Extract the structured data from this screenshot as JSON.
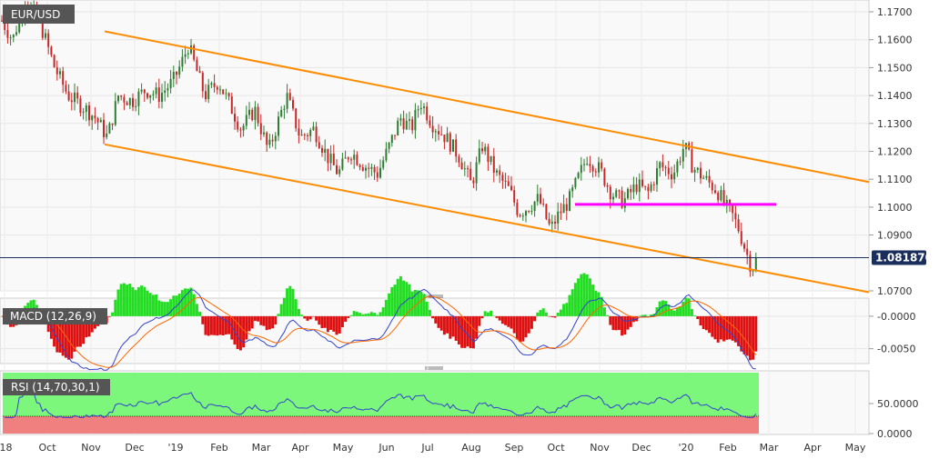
{
  "chart_data": {
    "type": "candlestick",
    "symbol": "EUR/USD",
    "last_price": "1.081870",
    "price_axis": {
      "ticks": [
        "1.1700",
        "1.1600",
        "1.1500",
        "1.1400",
        "1.1300",
        "1.1200",
        "1.1100",
        "1.1000",
        "1.0900",
        "1.0700"
      ],
      "range": [
        1.068,
        1.175
      ]
    },
    "x_axis": {
      "labels": [
        "'18",
        "Oct",
        "Nov",
        "Dec",
        "'19",
        "Feb",
        "Mar",
        "Apr",
        "May",
        "Jun",
        "Jul",
        "Aug",
        "Sep",
        "Oct",
        "Nov",
        "Dec",
        "'20",
        "Feb",
        "Mar",
        "Apr",
        "May"
      ]
    },
    "price_path": [
      [
        0,
        1.168
      ],
      [
        14,
        1.16
      ],
      [
        28,
        1.175
      ],
      [
        45,
        1.165
      ],
      [
        60,
        1.15
      ],
      [
        75,
        1.14
      ],
      [
        95,
        1.135
      ],
      [
        105,
        1.132
      ],
      [
        118,
        1.125
      ],
      [
        130,
        1.14
      ],
      [
        145,
        1.138
      ],
      [
        160,
        1.142
      ],
      [
        175,
        1.14
      ],
      [
        190,
        1.145
      ],
      [
        200,
        1.152
      ],
      [
        207,
        1.158
      ],
      [
        215,
        1.15
      ],
      [
        225,
        1.14
      ],
      [
        240,
        1.145
      ],
      [
        255,
        1.135
      ],
      [
        265,
        1.128
      ],
      [
        280,
        1.135
      ],
      [
        295,
        1.12
      ],
      [
        305,
        1.13
      ],
      [
        315,
        1.14
      ],
      [
        330,
        1.125
      ],
      [
        345,
        1.128
      ],
      [
        360,
        1.118
      ],
      [
        372,
        1.112
      ],
      [
        385,
        1.12
      ],
      [
        400,
        1.115
      ],
      [
        415,
        1.112
      ],
      [
        428,
        1.122
      ],
      [
        440,
        1.132
      ],
      [
        452,
        1.128
      ],
      [
        462,
        1.138
      ],
      [
        475,
        1.13
      ],
      [
        490,
        1.125
      ],
      [
        505,
        1.118
      ],
      [
        518,
        1.108
      ],
      [
        530,
        1.122
      ],
      [
        545,
        1.112
      ],
      [
        560,
        1.106
      ],
      [
        570,
        1.098
      ],
      [
        580,
        1.1
      ],
      [
        592,
        1.103
      ],
      [
        605,
        1.092
      ],
      [
        615,
        1.098
      ],
      [
        625,
        1.102
      ],
      [
        635,
        1.11
      ],
      [
        645,
        1.118
      ],
      [
        660,
        1.113
      ],
      [
        672,
        1.105
      ],
      [
        685,
        1.102
      ],
      [
        700,
        1.108
      ],
      [
        712,
        1.105
      ],
      [
        725,
        1.115
      ],
      [
        740,
        1.112
      ],
      [
        752,
        1.122
      ],
      [
        762,
        1.114
      ],
      [
        775,
        1.11
      ],
      [
        788,
        1.106
      ],
      [
        798,
        1.1
      ],
      [
        805,
        1.097
      ],
      [
        812,
        1.092
      ],
      [
        818,
        1.086
      ],
      [
        824,
        1.08
      ],
      [
        830,
        1.078
      ],
      [
        834,
        1.0819
      ]
    ],
    "channel_lines": {
      "upper": [
        [
          1.163,
          115
        ],
        [
          1.109,
          955
        ]
      ],
      "lower": [
        [
          1.1225,
          115
        ],
        [
          1.0695,
          955
        ]
      ]
    },
    "support_resistance": {
      "level": 1.101,
      "from_x": 632,
      "to_x": 853
    },
    "macd": {
      "label": "MACD (12,26,9)",
      "ticks": [
        "-0.0000",
        "-0.0050"
      ],
      "range": [
        -0.007,
        0.0025
      ]
    },
    "rsi": {
      "label": "RSI (14,70,30,1)",
      "ticks": [
        "50.0000",
        "0.0000"
      ],
      "overbought": 70,
      "oversold": 30,
      "range": [
        0,
        100
      ]
    },
    "colors": {
      "channel": "#FF8C00",
      "level": "#FF00FF",
      "bull": "#2E7D32",
      "bear": "#C62828",
      "macd_line": "#3344CC",
      "signal_line": "#FF6600",
      "macd_pos": "#22DD22",
      "macd_neg": "#DD1111",
      "rsi_line": "#3344CC",
      "rsi_overbought": "#7CF77C",
      "rsi_oversold": "#F08080",
      "tag_bg": "#555555",
      "price_tag": "#1A2E5C"
    }
  }
}
